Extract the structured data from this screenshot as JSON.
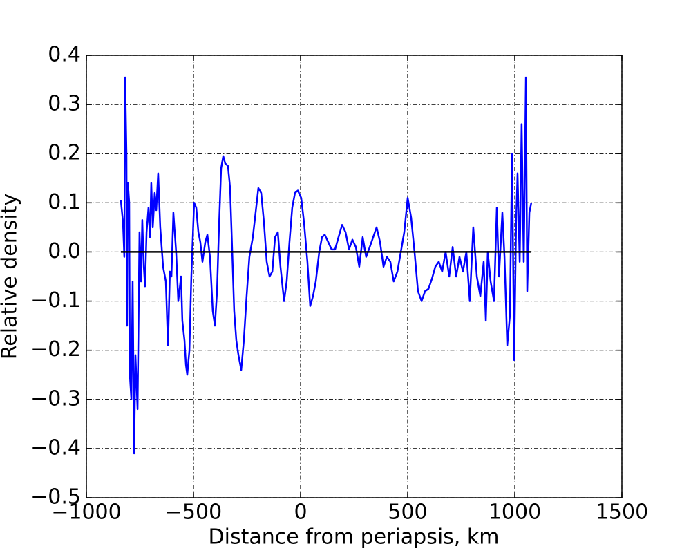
{
  "chart_data": {
    "type": "line",
    "xlabel": "Distance from periapsis, km",
    "ylabel": "Relative density",
    "xlim": [
      -1000,
      1500
    ],
    "ylim": [
      -0.5,
      0.4
    ],
    "xticks": [
      {
        "value": -1000,
        "label": "−1000"
      },
      {
        "value": -500,
        "label": "−500"
      },
      0,
      500,
      1000,
      1500
    ],
    "yticks": [
      {
        "value": -0.5,
        "label": "−0.5"
      },
      {
        "value": -0.4,
        "label": "−0.4"
      },
      {
        "value": -0.3,
        "label": "−0.3"
      },
      {
        "value": -0.2,
        "label": "−0.2"
      },
      {
        "value": -0.1,
        "label": "−0.1"
      },
      {
        "value": 0,
        "label": "0.0"
      },
      0.1,
      0.2,
      0.3,
      0.4
    ],
    "grid": true,
    "series": [
      {
        "color": "#0000ff",
        "x": [
          -839,
          -829,
          -823,
          -819,
          -813,
          -810,
          -806,
          -800,
          -797,
          -790,
          -784,
          -777,
          -771,
          -761,
          -752,
          -745,
          -739,
          -732,
          -726,
          -719,
          -710,
          -703,
          -697,
          -690,
          -681,
          -674,
          -665,
          -655,
          -642,
          -629,
          -619,
          -610,
          -603,
          -594,
          -581,
          -571,
          -558,
          -552,
          -542,
          -535,
          -529,
          -519,
          -510,
          -497,
          -487,
          -477,
          -468,
          -458,
          -445,
          -435,
          -423,
          -410,
          -400,
          -390,
          -381,
          -371,
          -361,
          -352,
          -339,
          -329,
          -319,
          -310,
          -300,
          -290,
          -277,
          -265,
          -252,
          -239,
          -223,
          -210,
          -197,
          -184,
          -171,
          -158,
          -145,
          -132,
          -119,
          -106,
          -94,
          -77,
          -65,
          -52,
          -39,
          -26,
          -13,
          3,
          16,
          32,
          45,
          58,
          71,
          87,
          100,
          113,
          129,
          145,
          161,
          177,
          194,
          210,
          226,
          242,
          258,
          274,
          290,
          306,
          323,
          339,
          355,
          371,
          387,
          403,
          419,
          435,
          452,
          468,
          484,
          500,
          516,
          532,
          548,
          565,
          581,
          597,
          613,
          629,
          645,
          661,
          677,
          694,
          710,
          726,
          742,
          758,
          774,
          790,
          806,
          823,
          839,
          855,
          865,
          874,
          887,
          903,
          916,
          926,
          942,
          952,
          965,
          977,
          987,
          997,
          1006,
          1013,
          1023,
          1032,
          1042,
          1052,
          1058,
          1068,
          1077
        ],
        "values": [
          0.105,
          0.06,
          -0.01,
          0.355,
          0.2,
          -0.15,
          0.14,
          0.1,
          -0.25,
          -0.3,
          -0.06,
          -0.41,
          -0.21,
          -0.32,
          0.04,
          -0.06,
          0.065,
          -0.03,
          -0.07,
          0.04,
          0.09,
          0.03,
          0.14,
          0.05,
          0.12,
          0.085,
          0.16,
          0.05,
          -0.03,
          -0.06,
          -0.19,
          -0.04,
          -0.05,
          0.08,
          0.0,
          -0.1,
          -0.05,
          -0.14,
          -0.18,
          -0.23,
          -0.25,
          -0.2,
          -0.05,
          0.1,
          0.09,
          0.04,
          0.02,
          -0.02,
          0.02,
          0.035,
          -0.01,
          -0.12,
          -0.15,
          -0.08,
          0.05,
          0.17,
          0.195,
          0.18,
          0.175,
          0.13,
          0.0,
          -0.12,
          -0.18,
          -0.21,
          -0.24,
          -0.18,
          -0.09,
          -0.01,
          0.03,
          0.08,
          0.13,
          0.12,
          0.06,
          -0.02,
          -0.05,
          -0.04,
          0.03,
          0.04,
          -0.03,
          -0.1,
          -0.06,
          0.02,
          0.09,
          0.12,
          0.125,
          0.11,
          0.06,
          -0.02,
          -0.11,
          -0.09,
          -0.06,
          0.0,
          0.03,
          0.035,
          0.02,
          0.005,
          0.005,
          0.03,
          0.055,
          0.04,
          0.005,
          0.025,
          0.01,
          -0.03,
          0.03,
          -0.01,
          0.01,
          0.03,
          0.05,
          0.02,
          -0.03,
          -0.01,
          -0.02,
          -0.06,
          -0.04,
          0.0,
          0.04,
          0.11,
          0.07,
          0.0,
          -0.08,
          -0.1,
          -0.08,
          -0.075,
          -0.055,
          -0.03,
          -0.02,
          -0.04,
          0.0,
          -0.05,
          0.01,
          -0.05,
          -0.01,
          -0.04,
          0.0,
          -0.1,
          0.05,
          -0.05,
          -0.09,
          -0.02,
          -0.14,
          0.0,
          -0.06,
          -0.1,
          0.09,
          -0.05,
          0.08,
          -0.01,
          -0.19,
          -0.13,
          0.2,
          -0.22,
          0.06,
          0.16,
          -0.02,
          0.26,
          -0.02,
          0.355,
          -0.08,
          0.08,
          0.1
        ]
      },
      {
        "color": "#000000",
        "x": [
          -839,
          1077
        ],
        "values": [
          0,
          0
        ]
      }
    ]
  }
}
